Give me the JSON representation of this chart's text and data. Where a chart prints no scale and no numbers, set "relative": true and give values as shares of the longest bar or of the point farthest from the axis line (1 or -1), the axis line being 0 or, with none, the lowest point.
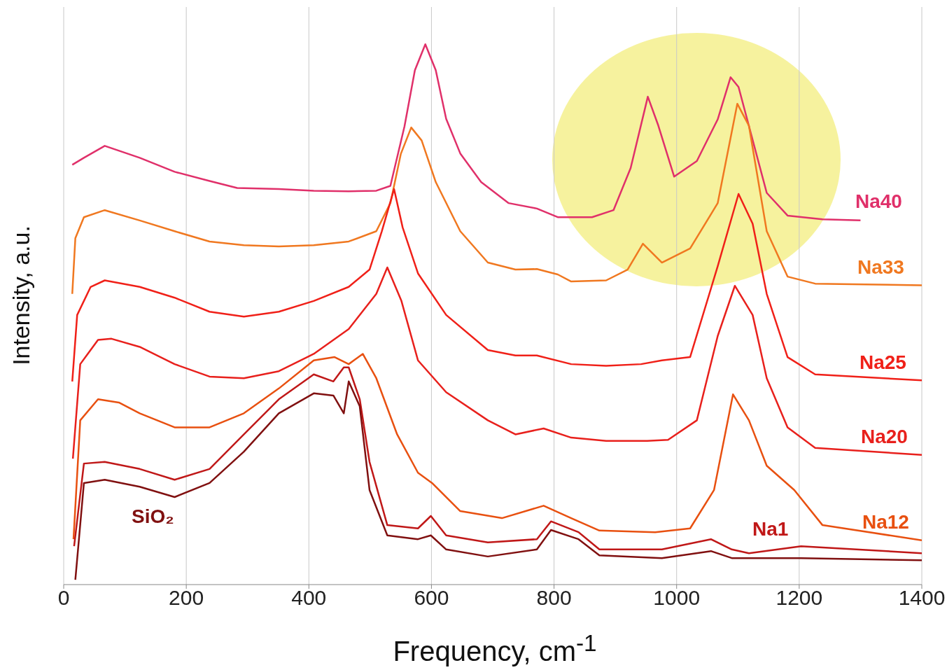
{
  "chart_data": {
    "type": "line",
    "relative": true,
    "xlabel": "Frequency, cm$^{-1}$",
    "ylabel": "Intensity, a.u.",
    "xlim": [
      0,
      1400
    ],
    "xticks": [
      0,
      200,
      400,
      600,
      800,
      1000,
      1200,
      1400
    ],
    "grid": "x",
    "legend": false,
    "marker": "none",
    "line_style": "solid",
    "series": [
      {
        "name": "Na40",
        "color": "#e0306a",
        "x": [
          14,
          33,
          67,
          124,
          181,
          238,
          283,
          351,
          408,
          465,
          510,
          533,
          556,
          573,
          590,
          607,
          624,
          647,
          681,
          726,
          772,
          806,
          862,
          897,
          925,
          953,
          970,
          996,
          1033,
          1067,
          1088,
          1101,
          1124,
          1147,
          1181,
          1238,
          1300
        ],
        "values": [
          0.777,
          0.79,
          0.812,
          0.79,
          0.764,
          0.747,
          0.734,
          0.732,
          0.729,
          0.728,
          0.729,
          0.738,
          0.848,
          0.952,
          1.0,
          0.952,
          0.862,
          0.798,
          0.745,
          0.706,
          0.696,
          0.68,
          0.68,
          0.693,
          0.771,
          0.903,
          0.85,
          0.755,
          0.784,
          0.861,
          0.939,
          0.921,
          0.823,
          0.725,
          0.683,
          0.676,
          0.674
        ]
      },
      {
        "name": "Na33",
        "color": "#f07820",
        "x": [
          14,
          19,
          33,
          67,
          124,
          181,
          238,
          294,
          351,
          408,
          465,
          510,
          533,
          550,
          567,
          584,
          607,
          647,
          692,
          737,
          772,
          806,
          828,
          885,
          920,
          945,
          976,
          1022,
          1067,
          1099,
          1118,
          1147,
          1181,
          1226,
          1400
        ],
        "values": [
          0.538,
          0.641,
          0.68,
          0.693,
          0.674,
          0.654,
          0.635,
          0.628,
          0.626,
          0.628,
          0.635,
          0.654,
          0.706,
          0.797,
          0.846,
          0.822,
          0.745,
          0.654,
          0.596,
          0.583,
          0.584,
          0.574,
          0.561,
          0.563,
          0.583,
          0.631,
          0.596,
          0.622,
          0.706,
          0.89,
          0.849,
          0.654,
          0.57,
          0.557,
          0.554
        ]
      },
      {
        "name": "Na25",
        "color": "#f02018",
        "x": [
          14,
          22,
          44,
          67,
          124,
          181,
          238,
          294,
          351,
          408,
          465,
          499,
          519,
          539,
          553,
          578,
          624,
          692,
          737,
          772,
          828,
          885,
          942,
          976,
          1022,
          1067,
          1101,
          1124,
          1147,
          1181,
          1226,
          1400
        ],
        "values": [
          0.376,
          0.499,
          0.551,
          0.563,
          0.551,
          0.531,
          0.505,
          0.496,
          0.505,
          0.525,
          0.551,
          0.583,
          0.654,
          0.732,
          0.661,
          0.576,
          0.499,
          0.434,
          0.424,
          0.424,
          0.408,
          0.405,
          0.408,
          0.415,
          0.421,
          0.589,
          0.723,
          0.668,
          0.538,
          0.421,
          0.389,
          0.378
        ]
      },
      {
        "name": "Na20",
        "color": "#e8201c",
        "x": [
          15,
          27,
          56,
          78,
          124,
          181,
          238,
          294,
          351,
          408,
          465,
          510,
          528,
          551,
          578,
          624,
          692,
          737,
          783,
          828,
          885,
          952,
          986,
          1033,
          1067,
          1095,
          1124,
          1147,
          1181,
          1226,
          1400
        ],
        "values": [
          0.233,
          0.408,
          0.453,
          0.455,
          0.44,
          0.408,
          0.385,
          0.382,
          0.395,
          0.427,
          0.473,
          0.538,
          0.587,
          0.525,
          0.415,
          0.356,
          0.304,
          0.278,
          0.289,
          0.272,
          0.266,
          0.266,
          0.268,
          0.304,
          0.46,
          0.553,
          0.499,
          0.382,
          0.291,
          0.253,
          0.24
        ]
      },
      {
        "name": "Na12",
        "color": "#e85010",
        "x": [
          16,
          27,
          56,
          90,
          124,
          181,
          238,
          294,
          351,
          408,
          442,
          465,
          488,
          510,
          544,
          578,
          601,
          647,
          715,
          783,
          828,
          874,
          965,
          1022,
          1061,
          1092,
          1118,
          1147,
          1192,
          1238,
          1400
        ],
        "values": [
          0.084,
          0.304,
          0.343,
          0.337,
          0.317,
          0.291,
          0.291,
          0.317,
          0.363,
          0.415,
          0.421,
          0.408,
          0.427,
          0.382,
          0.278,
          0.207,
          0.188,
          0.136,
          0.123,
          0.146,
          0.123,
          0.1,
          0.097,
          0.104,
          0.175,
          0.352,
          0.304,
          0.22,
          0.175,
          0.11,
          0.082
        ]
      },
      {
        "name": "Na1",
        "color": "#c01818",
        "x": [
          17,
          33,
          67,
          124,
          181,
          238,
          294,
          351,
          408,
          440,
          457,
          465,
          483,
          499,
          528,
          578,
          599,
          624,
          692,
          772,
          795,
          840,
          874,
          976,
          1056,
          1090,
          1118,
          1203,
          1400
        ],
        "values": [
          0.071,
          0.224,
          0.227,
          0.214,
          0.194,
          0.214,
          0.278,
          0.343,
          0.389,
          0.376,
          0.402,
          0.402,
          0.343,
          0.227,
          0.11,
          0.104,
          0.127,
          0.091,
          0.078,
          0.084,
          0.117,
          0.097,
          0.065,
          0.065,
          0.084,
          0.065,
          0.058,
          0.071,
          0.058
        ]
      },
      {
        "name": "SiO₂",
        "color": "#801010",
        "x": [
          19,
          33,
          67,
          124,
          181,
          238,
          294,
          351,
          408,
          440,
          457,
          465,
          483,
          499,
          528,
          578,
          599,
          624,
          692,
          772,
          795,
          840,
          874,
          976,
          1056,
          1090,
          1203,
          1400
        ],
        "values": [
          0.009,
          0.188,
          0.194,
          0.181,
          0.162,
          0.188,
          0.246,
          0.317,
          0.354,
          0.35,
          0.317,
          0.376,
          0.33,
          0.175,
          0.091,
          0.084,
          0.091,
          0.065,
          0.052,
          0.065,
          0.101,
          0.084,
          0.054,
          0.049,
          0.062,
          0.049,
          0.049,
          0.045
        ]
      }
    ]
  }
}
